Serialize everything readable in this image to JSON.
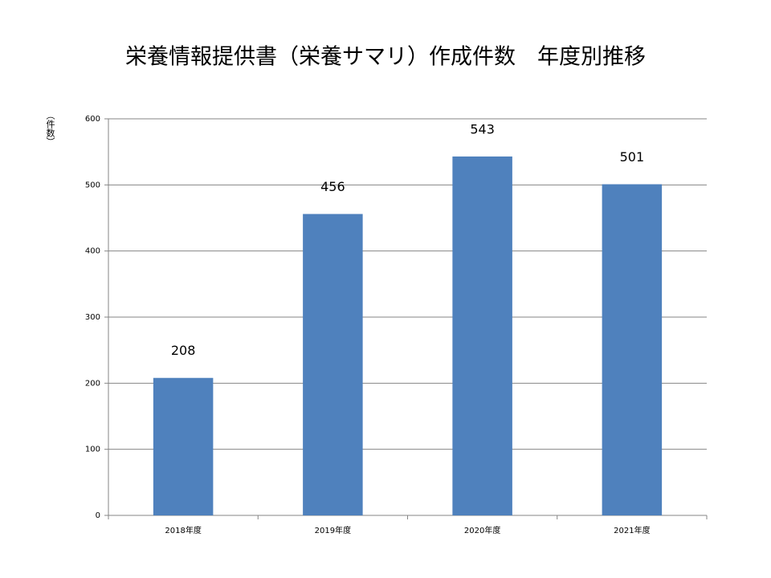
{
  "chart_data": {
    "type": "bar",
    "title": "栄養情報提供書（栄養サマリ）作成件数　年度別推移",
    "y_label": "（件数）",
    "categories": [
      "2018年度",
      "2019年度",
      "2020年度",
      "2021年度"
    ],
    "values": [
      208,
      456,
      543,
      501
    ],
    "color": "#4f81bd",
    "ylim": [
      0,
      600
    ],
    "yticks": [
      0,
      100,
      200,
      300,
      400,
      500,
      600
    ],
    "grid": true
  }
}
